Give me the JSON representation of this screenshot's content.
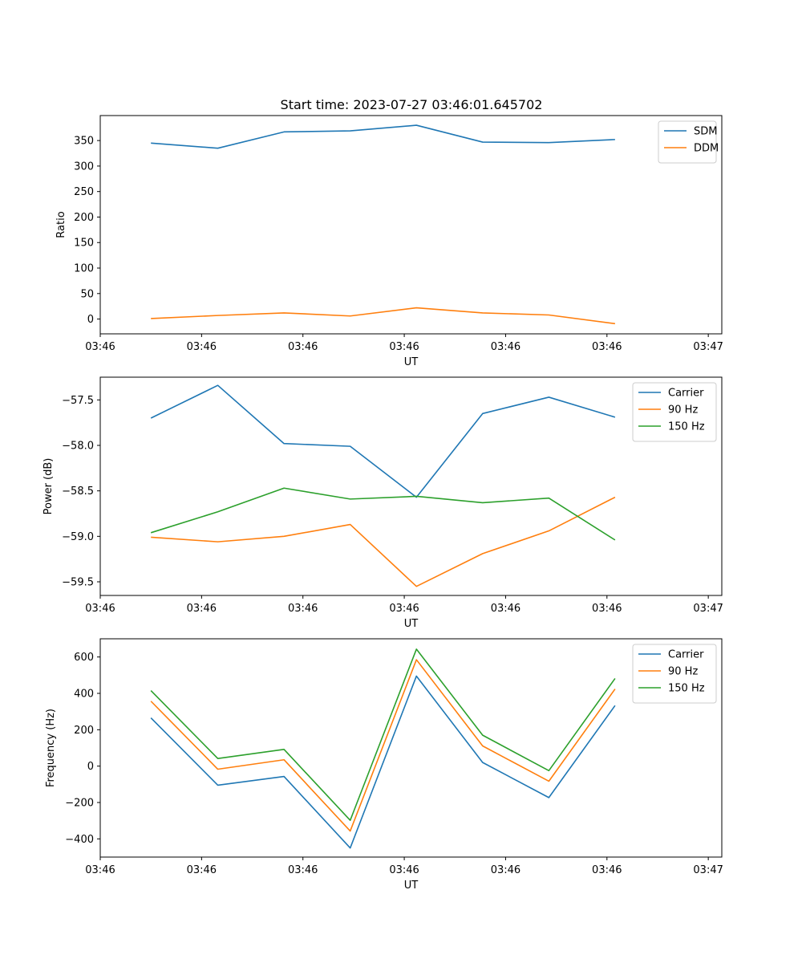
{
  "chart_data": [
    {
      "type": "line",
      "title": "Start time: 2023-07-27 03:46:01.645702",
      "xlabel": "UT",
      "ylabel": "Ratio",
      "xlim": [
        0,
        9.2
      ],
      "ylim": [
        -29,
        399
      ],
      "xticks": [
        0,
        1.5,
        3,
        4.5,
        6,
        7.5,
        9
      ],
      "xtick_labels": [
        "03:46",
        "03:46",
        "03:46",
        "03:46",
        "03:46",
        "03:46",
        "03:47"
      ],
      "yticks": [
        0,
        50,
        100,
        150,
        200,
        250,
        300,
        350
      ],
      "ytick_labels": [
        "0",
        "50",
        "100",
        "150",
        "200",
        "250",
        "300",
        "350"
      ],
      "x": [
        0.75,
        1.74,
        2.72,
        3.7,
        4.68,
        5.66,
        6.64,
        7.62
      ],
      "legend_loc": "upper right",
      "series": [
        {
          "name": "SDM",
          "color": "#1f77b4",
          "values": [
            345,
            335,
            367,
            369,
            380,
            347,
            346,
            352
          ]
        },
        {
          "name": "DDM",
          "color": "#ff7f0e",
          "values": [
            1,
            7,
            12,
            6,
            22,
            12,
            8,
            -9
          ]
        }
      ]
    },
    {
      "type": "line",
      "title": "",
      "xlabel": "UT",
      "ylabel": "Power (dB)",
      "xlim": [
        0,
        9.2
      ],
      "ylim": [
        -59.65,
        -57.25
      ],
      "xticks": [
        0,
        1.5,
        3,
        4.5,
        6,
        7.5,
        9
      ],
      "xtick_labels": [
        "03:46",
        "03:46",
        "03:46",
        "03:46",
        "03:46",
        "03:46",
        "03:47"
      ],
      "yticks": [
        -59.5,
        -59.0,
        -58.5,
        -58.0,
        -57.5
      ],
      "ytick_labels": [
        "−59.5",
        "−59.0",
        "−58.5",
        "−58.0",
        "−57.5"
      ],
      "x": [
        0.75,
        1.74,
        2.72,
        3.7,
        4.68,
        5.66,
        6.64,
        7.62
      ],
      "legend_loc": "upper right",
      "series": [
        {
          "name": "Carrier",
          "color": "#1f77b4",
          "values": [
            -57.7,
            -57.34,
            -57.98,
            -58.01,
            -58.57,
            -57.65,
            -57.47,
            -57.69
          ]
        },
        {
          "name": "90 Hz",
          "color": "#ff7f0e",
          "values": [
            -59.01,
            -59.06,
            -59.0,
            -58.87,
            -59.55,
            -59.19,
            -58.94,
            -58.57
          ]
        },
        {
          "name": "150 Hz",
          "color": "#2ca02c",
          "values": [
            -58.96,
            -58.73,
            -58.47,
            -58.59,
            -58.56,
            -58.63,
            -58.58,
            -59.04
          ]
        }
      ]
    },
    {
      "type": "line",
      "title": "",
      "xlabel": "UT",
      "ylabel": "Frequency (Hz)",
      "xlim": [
        0,
        9.2
      ],
      "ylim": [
        -500,
        700
      ],
      "xticks": [
        0,
        1.5,
        3,
        4.5,
        6,
        7.5,
        9
      ],
      "xtick_labels": [
        "03:46",
        "03:46",
        "03:46",
        "03:46",
        "03:46",
        "03:46",
        "03:47"
      ],
      "yticks": [
        -400,
        -200,
        0,
        200,
        400,
        600
      ],
      "ytick_labels": [
        "−400",
        "−200",
        "0",
        "200",
        "400",
        "600"
      ],
      "x": [
        0.75,
        1.74,
        2.72,
        3.7,
        4.68,
        5.66,
        6.64,
        7.62
      ],
      "legend_loc": "upper right",
      "series": [
        {
          "name": "Carrier",
          "color": "#1f77b4",
          "values": [
            265,
            -105,
            -57,
            -450,
            495,
            20,
            -173,
            333
          ]
        },
        {
          "name": "90 Hz",
          "color": "#ff7f0e",
          "values": [
            357,
            -17,
            35,
            -357,
            585,
            111,
            -83,
            424
          ]
        },
        {
          "name": "150 Hz",
          "color": "#2ca02c",
          "values": [
            415,
            42,
            92,
            -298,
            643,
            170,
            -25,
            482
          ]
        }
      ]
    }
  ]
}
